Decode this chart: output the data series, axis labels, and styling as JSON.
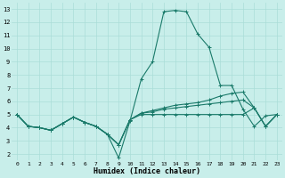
{
  "xlabel": "Humidex (Indice chaleur)",
  "background_color": "#c8eeea",
  "grid_color": "#aaddd8",
  "line_color": "#1a7a6a",
  "xlim": [
    -0.5,
    23.5
  ],
  "ylim": [
    1.5,
    13.5
  ],
  "xticks": [
    0,
    1,
    2,
    3,
    4,
    5,
    6,
    7,
    8,
    9,
    10,
    11,
    12,
    13,
    14,
    15,
    16,
    17,
    18,
    19,
    20,
    21,
    22,
    23
  ],
  "yticks": [
    2,
    3,
    4,
    5,
    6,
    7,
    8,
    9,
    10,
    11,
    12,
    13
  ],
  "line1": [
    5.0,
    4.1,
    4.0,
    3.8,
    4.3,
    4.8,
    4.4,
    4.1,
    3.5,
    1.7,
    4.5,
    7.7,
    9.0,
    12.8,
    12.9,
    12.8,
    11.1,
    10.1,
    7.2,
    7.2,
    5.4,
    4.1,
    4.9,
    5.0
  ],
  "line2": [
    5.0,
    4.1,
    4.0,
    3.8,
    4.3,
    4.8,
    4.4,
    4.1,
    3.5,
    2.7,
    4.6,
    5.0,
    5.0,
    5.0,
    5.0,
    5.0,
    5.0,
    5.0,
    5.0,
    5.0,
    5.0,
    5.5,
    4.1,
    5.0
  ],
  "line3": [
    5.0,
    4.1,
    4.0,
    3.8,
    4.3,
    4.8,
    4.4,
    4.1,
    3.5,
    2.7,
    4.6,
    5.1,
    5.3,
    5.5,
    5.7,
    5.8,
    5.9,
    6.1,
    6.4,
    6.6,
    6.7,
    5.5,
    4.1,
    5.0
  ],
  "line4": [
    5.0,
    4.1,
    4.0,
    3.8,
    4.3,
    4.8,
    4.4,
    4.1,
    3.5,
    2.7,
    4.6,
    5.1,
    5.2,
    5.4,
    5.5,
    5.6,
    5.7,
    5.8,
    5.9,
    6.0,
    6.1,
    5.5,
    4.1,
    5.0
  ]
}
